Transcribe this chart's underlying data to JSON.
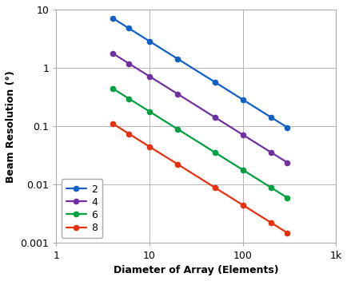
{
  "series": [
    {
      "label": "2",
      "color": "#1060C8",
      "x": [
        4,
        6,
        10,
        20,
        50,
        100,
        200,
        300
      ],
      "y": [
        7.16,
        4.77,
        2.86,
        1.43,
        0.573,
        0.286,
        0.143,
        0.0955
      ]
    },
    {
      "label": "4",
      "color": "#7030A0",
      "x": [
        4,
        6,
        10,
        20,
        50,
        100,
        200,
        300
      ],
      "y": [
        1.79,
        1.19,
        0.716,
        0.358,
        0.143,
        0.0716,
        0.0358,
        0.0239
      ]
    },
    {
      "label": "6",
      "color": "#00A040",
      "x": [
        4,
        6,
        10,
        20,
        50,
        100,
        200,
        300
      ],
      "y": [
        0.447,
        0.298,
        0.179,
        0.0894,
        0.0358,
        0.0179,
        0.00894,
        0.00596
      ]
    },
    {
      "label": "8",
      "color": "#E83010",
      "x": [
        4,
        6,
        10,
        20,
        50,
        100,
        200,
        300
      ],
      "y": [
        0.112,
        0.0745,
        0.0447,
        0.0224,
        0.00894,
        0.00447,
        0.00224,
        0.00149
      ]
    }
  ],
  "xlabel": "Diameter of Array (Elements)",
  "ylabel": "Beam Resolution (°)",
  "xlim": [
    1,
    1000
  ],
  "ylim": [
    0.001,
    10
  ],
  "xticks": [
    1,
    10,
    100,
    1000
  ],
  "xticklabels": [
    "1",
    "10",
    "100",
    "1k"
  ],
  "yticks": [
    0.001,
    0.01,
    0.1,
    1,
    10
  ],
  "yticklabels": [
    "0.001",
    "0.01",
    "0.1",
    "1",
    "10"
  ],
  "grid_color": "#aaaaaa",
  "background_color": "#ffffff",
  "marker": "o",
  "markersize": 4.5,
  "linewidth": 1.6
}
